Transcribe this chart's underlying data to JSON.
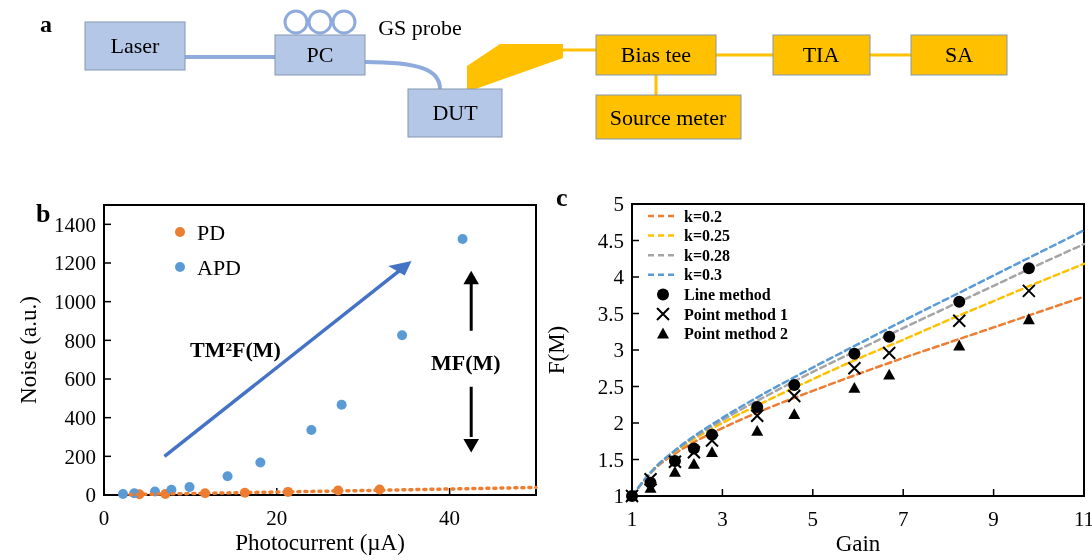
{
  "chart_data": [
    {
      "type": "other",
      "title": "a",
      "annotations": [
        "Laser",
        "PC",
        "DUT",
        "GS probe",
        "Bias tee",
        "Source meter",
        "TIA",
        "SA"
      ]
    },
    {
      "type": "scatter",
      "title": "b",
      "xlabel": "Photocurrent (µA)",
      "ylabel": "Noise (a.u.)",
      "xlim": [
        0,
        50
      ],
      "xticks": [
        0,
        20,
        40
      ],
      "ylim": [
        0,
        1500
      ],
      "yticks": [
        0,
        200,
        400,
        600,
        800,
        1000,
        1200,
        1400
      ],
      "legend": "top left",
      "marker": "circle",
      "annotations": [
        "TM²F(M)",
        "MF(M)"
      ],
      "series": [
        {
          "name": "PD",
          "color": "#ed7d31",
          "x": [
            4.1,
            7.1,
            11.7,
            16.3,
            21.3,
            27.1,
            31.9
          ],
          "values": [
            4,
            5,
            9,
            12,
            16,
            23,
            28
          ]
        },
        {
          "name": "APD",
          "color": "#5b9bd5",
          "x": [
            2.2,
            3.5,
            5.9,
            7.8,
            9.9,
            14.3,
            18.1,
            24.0,
            27.5,
            34.5,
            41.5
          ],
          "values": [
            5,
            9,
            18,
            27,
            41,
            97,
            168,
            336,
            467,
            826,
            1324
          ]
        },
        {
          "type": "line",
          "color": "#ed7d31",
          "line_style": "dotted",
          "marker": "none",
          "x": [
            3,
            50
          ],
          "values": [
            2,
            39
          ]
        }
      ]
    },
    {
      "type": "line",
      "title": "c",
      "xlabel": "Gain",
      "ylabel": "F(M)",
      "xlim": [
        1,
        11
      ],
      "xticks": [
        1,
        3,
        5,
        7,
        9,
        11
      ],
      "ylim": [
        1,
        5
      ],
      "yticks": [
        1,
        1.5,
        2,
        2.5,
        3,
        3.5,
        4,
        4.5,
        5
      ],
      "legend": "top left",
      "series": [
        {
          "name": "k=0.2",
          "color": "#ed7d31",
          "line_style": "dashed",
          "marker": "none",
          "x": [
            1,
            1.5,
            2,
            3,
            4,
            5,
            6,
            7,
            8,
            9,
            10,
            11
          ],
          "values": [
            1,
            1.37,
            1.6,
            1.93,
            2.2,
            2.44,
            2.67,
            2.89,
            3.1,
            3.31,
            3.52,
            3.73
          ]
        },
        {
          "name": "k=0.25",
          "color": "#ffc000",
          "line_style": "dashed",
          "marker": "none",
          "x": [
            1,
            1.5,
            2,
            3,
            4,
            5,
            6,
            7,
            8,
            9,
            10,
            11
          ],
          "values": [
            1,
            1.38,
            1.63,
            2.0,
            2.31,
            2.6,
            2.88,
            3.14,
            3.41,
            3.67,
            3.93,
            4.18
          ]
        },
        {
          "name": "k=0.28",
          "color": "#a5a5a5",
          "line_style": "dashed",
          "marker": "none",
          "x": [
            1,
            1.5,
            2,
            3,
            4,
            5,
            6,
            7,
            8,
            9,
            10,
            11
          ],
          "values": [
            1,
            1.38,
            1.64,
            2.04,
            2.38,
            2.7,
            3.0,
            3.3,
            3.59,
            3.88,
            4.17,
            4.45
          ]
        },
        {
          "name": "k=0.3",
          "color": "#5b9bd5",
          "line_style": "dashed",
          "marker": "none",
          "x": [
            1,
            1.5,
            2,
            3,
            4,
            5,
            6,
            7,
            8,
            9,
            10,
            11
          ],
          "values": [
            1,
            1.38,
            1.65,
            2.07,
            2.43,
            2.76,
            3.08,
            3.4,
            3.71,
            4.02,
            4.33,
            4.64
          ]
        },
        {
          "name": "Line method",
          "type": "scatter",
          "color": "#000000",
          "marker": "circle",
          "x": [
            1,
            1.41,
            1.95,
            2.37,
            2.77,
            3.77,
            4.59,
            5.92,
            6.69,
            8.24,
            9.78
          ],
          "values": [
            1,
            1.18,
            1.48,
            1.65,
            1.84,
            2.22,
            2.52,
            2.95,
            3.18,
            3.66,
            4.12
          ]
        },
        {
          "name": "Point method 1",
          "type": "scatter",
          "color": "#000000",
          "marker": "cross",
          "x": [
            1,
            1.41,
            1.95,
            2.37,
            2.77,
            3.77,
            4.59,
            5.92,
            6.69,
            8.24,
            9.78
          ],
          "values": [
            1,
            1.23,
            1.47,
            1.6,
            1.76,
            2.1,
            2.37,
            2.75,
            2.96,
            3.4,
            3.81
          ]
        },
        {
          "name": "Point method 2",
          "type": "scatter",
          "color": "#000000",
          "marker": "triangle",
          "x": [
            1,
            1.41,
            1.95,
            2.37,
            2.77,
            3.77,
            4.59,
            5.92,
            6.69,
            8.24,
            9.78
          ],
          "values": [
            1,
            1.11,
            1.33,
            1.44,
            1.6,
            1.89,
            2.12,
            2.48,
            2.66,
            3.06,
            3.42
          ]
        }
      ]
    }
  ]
}
